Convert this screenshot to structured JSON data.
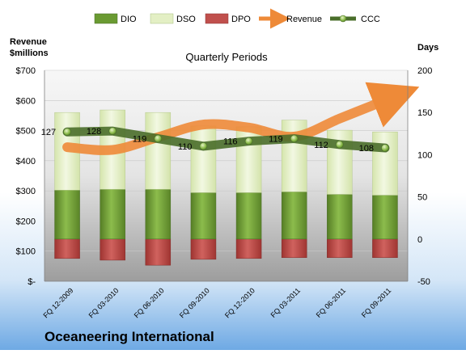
{
  "chart_data": {
    "type": "bar",
    "title": "Quarterly Periods",
    "company": "Oceaneering International",
    "left_axis_title": [
      "Revenue",
      "$millions"
    ],
    "right_axis_title": "Days",
    "categories": [
      "FQ 12-2009",
      "FQ 03-2010",
      "FQ 06-2010",
      "FQ 09-2010",
      "FQ 12-2010",
      "FQ 03-2011",
      "FQ 06-2011",
      "FQ 09-2011"
    ],
    "left_axis": {
      "min": 0,
      "max": 700,
      "step": 100,
      "tick_labels": [
        "$-",
        "$100",
        "$200",
        "$300",
        "$400",
        "$500",
        "$600",
        "$700"
      ]
    },
    "right_axis": {
      "min": -50,
      "max": 200,
      "step": 50,
      "tick_labels": [
        "-50",
        "0",
        "50",
        "100",
        "150",
        "200"
      ]
    },
    "legend": [
      "DIO",
      "DSO",
      "DPO",
      "Revenue",
      "CCC"
    ],
    "legend_position": "top",
    "series": [
      {
        "name": "DIO",
        "type": "stacked-bar",
        "axis": "right",
        "color": "#6a9a32",
        "values": [
          58,
          59,
          59,
          55,
          55,
          56,
          53,
          52
        ]
      },
      {
        "name": "DSO",
        "type": "stacked-bar",
        "axis": "right",
        "color": "#e3efc4",
        "values": [
          92,
          94,
          91,
          79,
          78,
          85,
          76,
          75
        ]
      },
      {
        "name": "DPO",
        "type": "negative-bar",
        "axis": "right",
        "color": "#c0504d",
        "values": [
          -23,
          -25,
          -31,
          -24,
          -23,
          -22,
          -22,
          -22
        ]
      },
      {
        "name": "Revenue",
        "type": "curve-arrow",
        "axis": "left",
        "color": "#ee8a38",
        "values": [
          445,
          436,
          478,
          520,
          510,
          480,
          540,
          600
        ]
      },
      {
        "name": "CCC",
        "type": "line",
        "axis": "right",
        "color": "#4a6e2a",
        "values": [
          127,
          128,
          119,
          110,
          116,
          119,
          112,
          108
        ]
      }
    ]
  }
}
